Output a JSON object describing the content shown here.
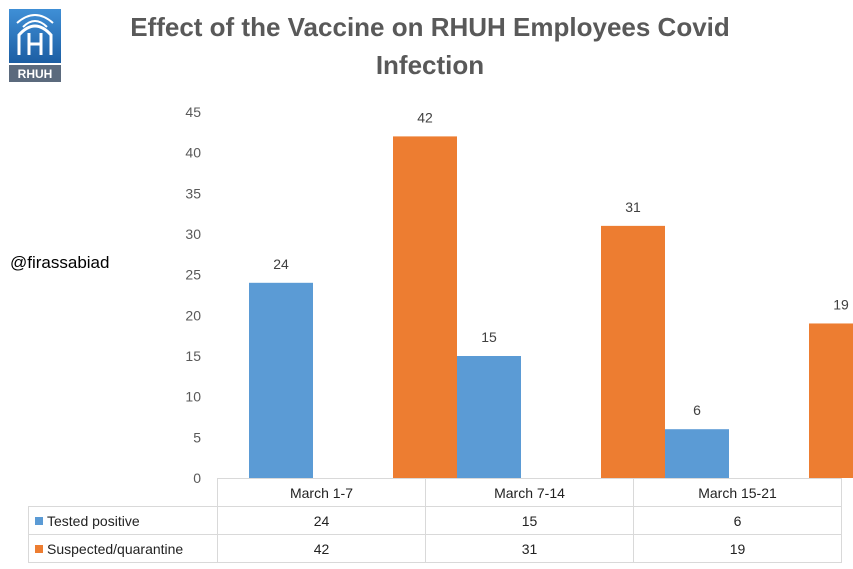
{
  "logo": {
    "text": "RHUH"
  },
  "handle": "@firassabiad",
  "colors": {
    "tested": "#5b9bd5",
    "suspected": "#ed7d31",
    "grid": "#d9d9d9",
    "axis": "#595959"
  },
  "chart_data": {
    "type": "bar",
    "title": "Effect of the Vaccine on RHUH Employees Covid Infection",
    "title_lines": [
      "Effect of the Vaccine on RHUH Employees Covid",
      "Infection"
    ],
    "categories": [
      "March 1-7",
      "March 7-14",
      "March 15-21"
    ],
    "series": [
      {
        "name": "Tested positive",
        "values": [
          24,
          15,
          6
        ]
      },
      {
        "name": "Suspected/quarantine",
        "values": [
          42,
          31,
          19
        ]
      }
    ],
    "ylim": [
      0,
      45
    ],
    "yticks": [
      0,
      5,
      10,
      15,
      20,
      25,
      30,
      35,
      40,
      45
    ],
    "grid": false,
    "data_labels": true,
    "legend": "data table below chart"
  },
  "table": {
    "rows": [
      {
        "label": "Tested positive",
        "values": [
          "24",
          "15",
          "6"
        ]
      },
      {
        "label": "Suspected/quarantine",
        "values": [
          "42",
          "31",
          "19"
        ]
      }
    ]
  }
}
